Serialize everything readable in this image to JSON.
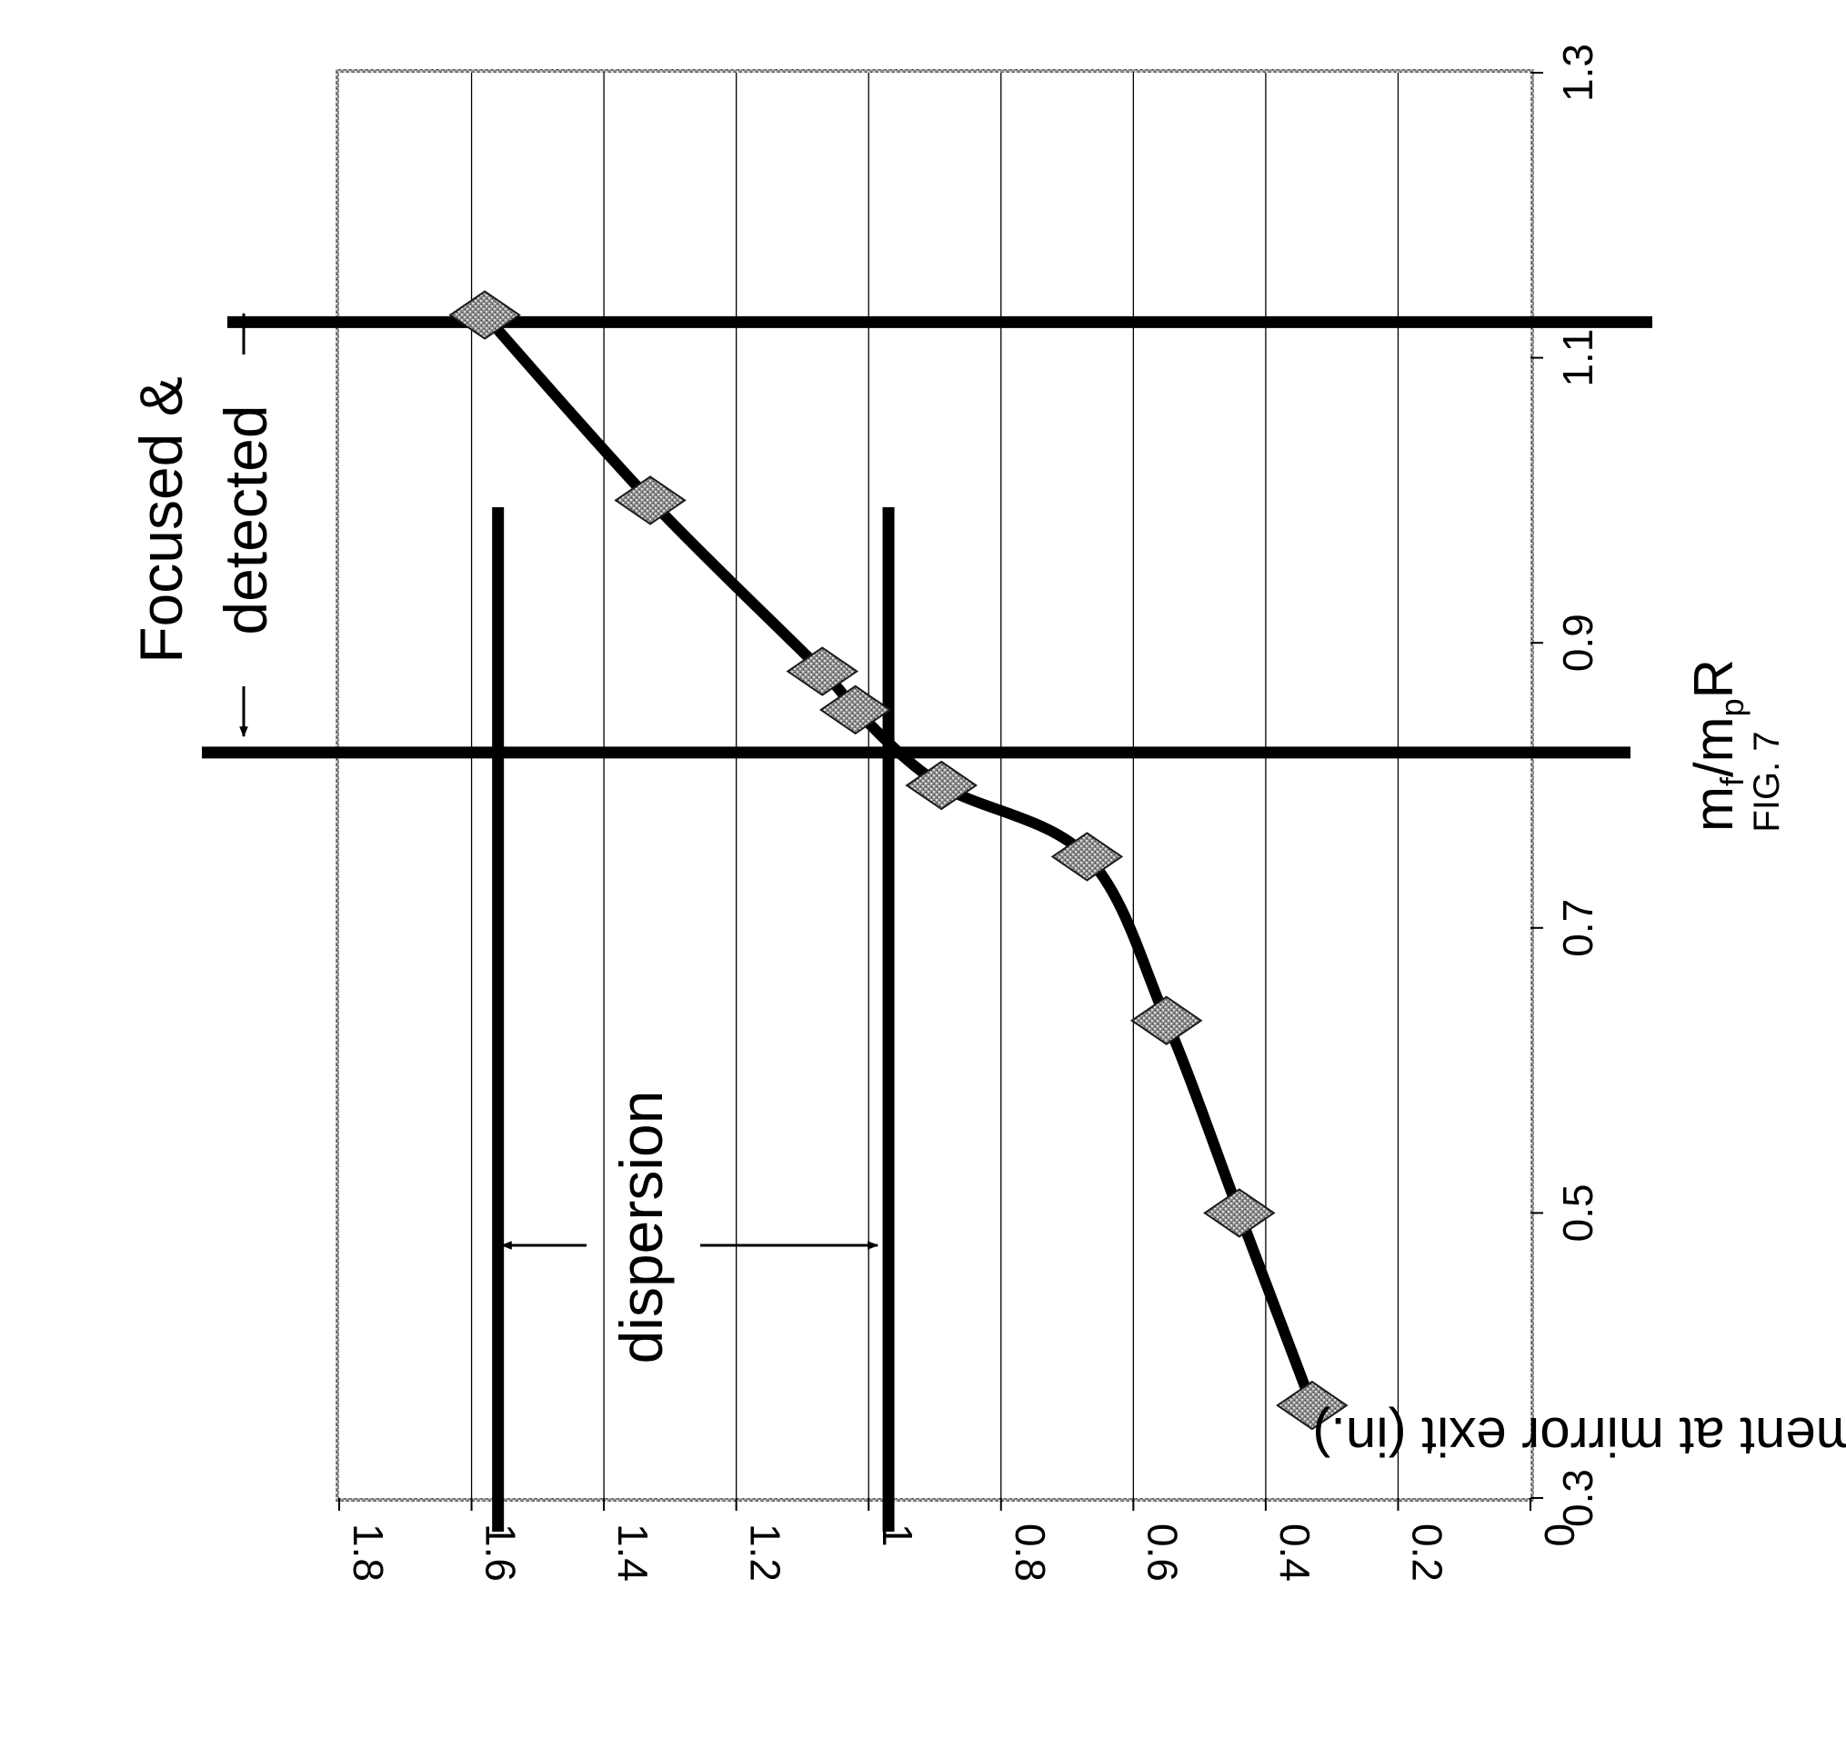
{
  "chart_data": {
    "type": "scatter",
    "orientation": "rotated-90-ccw",
    "xlabel": {
      "main": "m",
      "sub1": "f",
      "mid": "/m",
      "sub2": "p",
      "end": "R"
    },
    "ylabel": "Displacement at mirror exit (in.)",
    "figure_label": "FIG. 7",
    "xlim": [
      0.3,
      1.3
    ],
    "ylim": [
      0,
      1.8
    ],
    "x_ticks": [
      "0.3",
      "0.5",
      "0.7",
      "0.9",
      "1.1",
      "1.3"
    ],
    "y_ticks": [
      "0",
      "0.2",
      "0.4",
      "0.6",
      "0.8",
      "1",
      "1.2",
      "1.4",
      "1.6",
      "1.8"
    ],
    "grid": true,
    "series": [
      {
        "marker": "diamond",
        "x": [
          0.365,
          0.5,
          0.635,
          0.75,
          0.8,
          0.853,
          0.88,
          1.0,
          1.13
        ],
        "y": [
          0.33,
          0.44,
          0.55,
          0.67,
          0.89,
          1.02,
          1.07,
          1.33,
          1.58
        ]
      }
    ],
    "reference_lines": [
      {
        "orientation": "horizontal",
        "y": 1.56
      },
      {
        "orientation": "horizontal",
        "y": 0.97
      },
      {
        "orientation": "vertical",
        "x": 0.823
      },
      {
        "orientation": "vertical",
        "x": 1.125
      }
    ],
    "annotations": [
      {
        "text": "dispersion"
      },
      {
        "line1": "Focused &",
        "line2": "detected"
      }
    ]
  }
}
